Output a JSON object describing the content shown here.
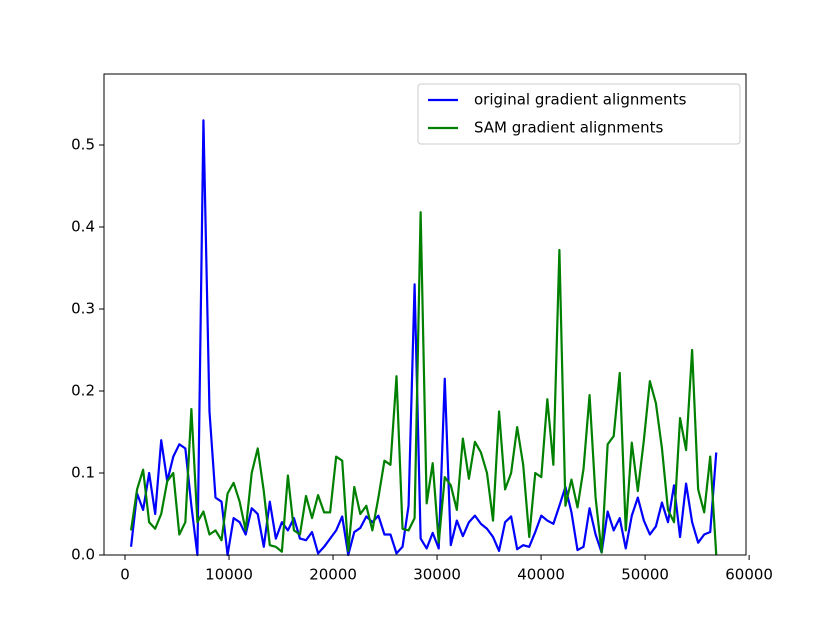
{
  "chart_data": {
    "type": "line",
    "x": [
      580,
      1160,
      1740,
      2320,
      2900,
      3480,
      4060,
      4640,
      5220,
      5800,
      6380,
      6960,
      7540,
      8120,
      8700,
      9280,
      9860,
      10440,
      11020,
      11600,
      12180,
      12760,
      13340,
      13920,
      14500,
      15080,
      15660,
      16240,
      16820,
      17400,
      17980,
      18560,
      19140,
      19720,
      20300,
      20880,
      21460,
      22040,
      22620,
      23200,
      23780,
      24360,
      24940,
      25520,
      26100,
      26680,
      27260,
      27840,
      28420,
      29000,
      29580,
      30160,
      30740,
      31320,
      31900,
      32480,
      33060,
      33640,
      34220,
      34800,
      35380,
      35960,
      36540,
      37120,
      37700,
      38280,
      38860,
      39440,
      40020,
      40600,
      41180,
      41760,
      42340,
      42920,
      43500,
      44080,
      44660,
      45240,
      45820,
      46400,
      46980,
      47560,
      48140,
      48720,
      49300,
      49880,
      50460,
      51040,
      51620,
      52200,
      52780,
      53360,
      53940,
      54520,
      55100,
      55680,
      56260,
      56840
    ],
    "series": [
      {
        "name": "original gradient alignments",
        "color": "#0000ff",
        "values": [
          0.01,
          0.075,
          0.055,
          0.1,
          0.05,
          0.14,
          0.09,
          0.12,
          0.135,
          0.13,
          0.06,
          0.0,
          0.53,
          0.175,
          0.07,
          0.065,
          0.0,
          0.045,
          0.04,
          0.025,
          0.057,
          0.05,
          0.01,
          0.065,
          0.02,
          0.04,
          0.03,
          0.045,
          0.02,
          0.018,
          0.028,
          0.002,
          0.01,
          0.02,
          0.03,
          0.047,
          0.0,
          0.028,
          0.033,
          0.047,
          0.04,
          0.048,
          0.025,
          0.025,
          0.002,
          0.01,
          0.06,
          0.33,
          0.02,
          0.008,
          0.027,
          0.008,
          0.215,
          0.012,
          0.042,
          0.023,
          0.04,
          0.048,
          0.038,
          0.032,
          0.022,
          0.005,
          0.04,
          0.047,
          0.007,
          0.012,
          0.01,
          0.028,
          0.048,
          0.042,
          0.038,
          0.06,
          0.083,
          0.052,
          0.006,
          0.01,
          0.057,
          0.025,
          0.003,
          0.053,
          0.03,
          0.045,
          0.008,
          0.048,
          0.07,
          0.042,
          0.025,
          0.035,
          0.064,
          0.04,
          0.085,
          0.022,
          0.087,
          0.04,
          0.015,
          0.025,
          0.028,
          0.125
        ]
      },
      {
        "name": "SAM gradient alignments",
        "color": "#008000",
        "values": [
          0.03,
          0.08,
          0.104,
          0.04,
          0.032,
          0.05,
          0.09,
          0.1,
          0.025,
          0.04,
          0.178,
          0.04,
          0.053,
          0.025,
          0.03,
          0.018,
          0.075,
          0.088,
          0.065,
          0.03,
          0.1,
          0.13,
          0.078,
          0.012,
          0.01,
          0.004,
          0.097,
          0.03,
          0.025,
          0.072,
          0.045,
          0.073,
          0.052,
          0.052,
          0.12,
          0.115,
          0.005,
          0.083,
          0.05,
          0.06,
          0.03,
          0.07,
          0.115,
          0.11,
          0.218,
          0.032,
          0.03,
          0.045,
          0.418,
          0.063,
          0.112,
          0.015,
          0.095,
          0.085,
          0.055,
          0.142,
          0.093,
          0.138,
          0.125,
          0.1,
          0.042,
          0.175,
          0.08,
          0.1,
          0.156,
          0.11,
          0.022,
          0.1,
          0.095,
          0.19,
          0.11,
          0.372,
          0.06,
          0.092,
          0.058,
          0.105,
          0.195,
          0.07,
          0.003,
          0.135,
          0.145,
          0.222,
          0.03,
          0.137,
          0.078,
          0.14,
          0.212,
          0.185,
          0.13,
          0.055,
          0.04,
          0.167,
          0.128,
          0.25,
          0.08,
          0.052,
          0.12,
          0.0
        ]
      }
    ],
    "xlim": [
      -2020,
      59700
    ],
    "xticks": [
      0,
      10000,
      20000,
      30000,
      40000,
      50000,
      60000
    ],
    "ylim": [
      0,
      0.5866
    ],
    "yticks": [
      {
        "value": 0,
        "label": "0.0"
      },
      0.1,
      0.2,
      0.3,
      0.4,
      0.5
    ],
    "legend": "upper right"
  }
}
